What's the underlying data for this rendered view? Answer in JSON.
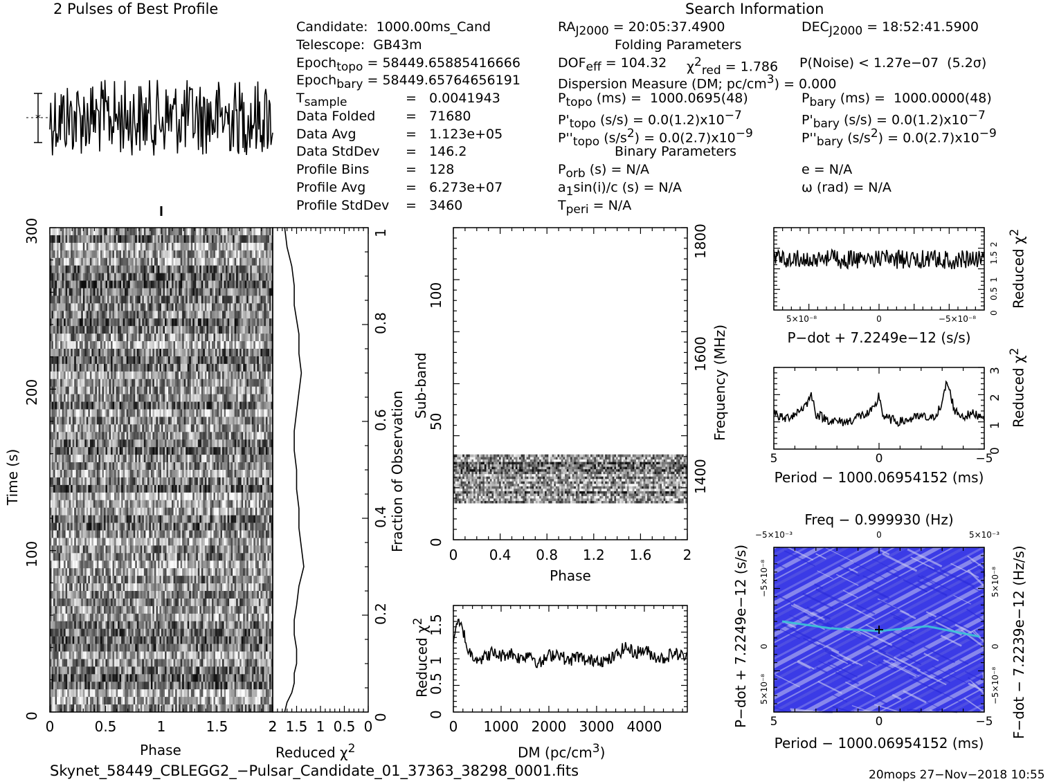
{
  "header": {
    "profile_title": "2 Pulses of Best Profile",
    "search_title": "Search Information"
  },
  "candidate_info": {
    "candidate": "Candidate:  1000.00ms_Cand",
    "telescope": "Telescope:  GB43m",
    "epoch_topo": "Epoch",
    "epoch_topo_sub": "topo",
    "epoch_topo_val": " = 58449.65885416666",
    "epoch_bary": "Epoch",
    "epoch_bary_sub": "bary",
    "epoch_bary_val": " = 58449.65764656191",
    "tsample": "T",
    "tsample_sub": "sample",
    "tsample_val": "=   0.0041943",
    "data_folded_label": "Data Folded",
    "data_folded_val": "=   71680",
    "data_avg_label": "Data Avg",
    "data_avg_val": "=   1.123e+05",
    "data_stddev_label": "Data StdDev",
    "data_stddev_val": "=   146.2",
    "profile_bins_label": "Profile Bins",
    "profile_bins_val": "=   128",
    "profile_avg_label": "Profile Avg",
    "profile_avg_val": "=   6.273e+07",
    "profile_stddev_label": "Profile StdDev",
    "profile_stddev_val": "=   3460"
  },
  "search_info": {
    "ra": "RA",
    "ra_sub": "J2000",
    "ra_val": " = 20:05:37.4900",
    "dec": "DEC",
    "dec_sub": "J2000",
    "dec_val": " = 18:52:41.5900",
    "folding_title": "Folding Parameters",
    "dof": "DOF",
    "dof_sub": "eff",
    "dof_val": " = 104.32",
    "chi2red": "χ",
    "chi2red_sup": "2",
    "chi2red_sub": "red",
    "chi2red_val": " = 1.786",
    "pnoise": "P(Noise) < 1.27e−07  (5.2σ)",
    "dm_line": "Dispersion Measure (DM; pc/cm",
    "dm_line_sup": "3",
    "dm_line_end": ") = 0.000",
    "ptopo": "P",
    "ptopo_sub": "topo",
    "ptopo_val": " (ms) =  1000.0695(48)",
    "pbary": "P",
    "pbary_sub": "bary",
    "pbary_val": " (ms) =  1000.0000(48)",
    "pdtopo": "P'",
    "pdtopo_sub": "topo",
    "pdtopo_val": " (s/s) = 0.0(1.2)x10",
    "pdtopo_exp": "−7",
    "pdbary": "P'",
    "pdbary_sub": "bary",
    "pdbary_val": " (s/s) = 0.0(1.2)x10",
    "pdbary_exp": "−7",
    "pddtopo": "P''",
    "pddtopo_sub": "topo",
    "pddtopo_val": " (s/s",
    "pddtopo_sup": "2",
    "pddtopo_val2": ") = 0.0(2.7)x10",
    "pddtopo_exp": "−9",
    "pddbary": "P''",
    "pddbary_sub": "bary",
    "pddbary_val": " (s/s",
    "pddbary_sup": "2",
    "pddbary_val2": ") = 0.0(2.7)x10",
    "pddbary_exp": "−9",
    "binary_title": "Binary Parameters",
    "porb": "P",
    "porb_sub": "orb",
    "porb_val": " (s) = N/A",
    "ecc": "e = N/A",
    "a1": "a",
    "a1_sub": "1",
    "a1_val": "sin(i)/c (s) = N/A",
    "omega": "ω (rad) = N/A",
    "tperi": "T",
    "tperi_sub": "peri",
    "tperi_val": " = N/A"
  },
  "footer": {
    "filename": "Skynet_58449_CBLEGG2_−Pulsar_Candidate_01_37363_38298_0001.fits",
    "stamp": "20mops 27−Nov−2018 10:55"
  },
  "colors": {
    "ink": "#000000",
    "ppdot_bg": "#3b3be6",
    "ppdot_light": "#b7b7ee",
    "ppdot_peak": "#3cc7d6"
  },
  "chart_data": [
    {
      "id": "pulse-profile",
      "type": "line",
      "title": "2 Pulses of Best Profile",
      "x": "phase 0 to 2, 256 bins",
      "values": [],
      "note_values": "noise-like profile, no strong pulse"
    },
    {
      "id": "time-phase",
      "type": "heatmap",
      "xlabel": "Phase",
      "ylabel": "Time (s)",
      "xlim": [
        0,
        2
      ],
      "ylim": [
        0,
        300
      ],
      "xticks": [
        "0",
        "0.5",
        "1",
        "1.5",
        "2"
      ],
      "yticks": [
        "0",
        "100",
        "200",
        "300"
      ]
    },
    {
      "id": "time-chi2",
      "type": "line",
      "xlabel": "Reduced χ",
      "xlabel_sup": "2",
      "ylabel": "Fraction of Observation",
      "xticks": [
        "2",
        "1.5",
        "1",
        "0.5",
        "0"
      ],
      "yticks": [
        "0",
        "0.2",
        "0.4",
        "0.6",
        "0.8",
        "1"
      ],
      "xlim": [
        2,
        0
      ],
      "ylim": [
        0,
        1
      ],
      "x": [
        1.75,
        1.7,
        1.6,
        1.55,
        1.55,
        1.45,
        1.45,
        1.4,
        1.45,
        1.5,
        1.55,
        1.55,
        1.5,
        1.5,
        1.45,
        1.45,
        1.4,
        1.35,
        1.45,
        1.5,
        1.55,
        1.55,
        1.5,
        1.5,
        1.55,
        1.55,
        1.6,
        1.7,
        1.75
      ],
      "y": [
        1.0,
        0.96,
        0.92,
        0.88,
        0.84,
        0.78,
        0.74,
        0.7,
        0.66,
        0.62,
        0.58,
        0.54,
        0.5,
        0.46,
        0.42,
        0.38,
        0.34,
        0.3,
        0.26,
        0.22,
        0.19,
        0.16,
        0.13,
        0.1,
        0.08,
        0.06,
        0.04,
        0.02,
        0.0
      ]
    },
    {
      "id": "subband-phase",
      "type": "heatmap",
      "xlabel": "Phase",
      "ylabel": "Sub-band",
      "ylabel_right": "Frequency (MHz)",
      "xlim": [
        0,
        2
      ],
      "ylim": [
        0,
        128
      ],
      "xticks": [
        "0",
        "0.4",
        "0.8",
        "1.2",
        "1.6",
        "2"
      ],
      "yticks": [
        "0",
        "50",
        "100"
      ],
      "yticks_right": [
        "1400",
        "1600",
        "1800"
      ],
      "filled_subbands": [
        15,
        35
      ]
    },
    {
      "id": "dm-chi2",
      "type": "line",
      "xlabel": "DM (pc/cm",
      "xlabel_sup": "3",
      "xlabel_end": ")",
      "ylabel": "Reduced χ",
      "ylabel_sup": "2",
      "xlim": [
        0,
        4900
      ],
      "ylim": [
        0,
        1.8
      ],
      "xticks": [
        "0",
        "1000",
        "2000",
        "3000",
        "4000"
      ],
      "yticks": [
        "0",
        "0.5",
        "1",
        "1.5"
      ],
      "x": [
        0,
        100,
        200,
        300,
        400,
        600,
        800,
        1000,
        1200,
        1400,
        1600,
        1800,
        2000,
        2200,
        2400,
        2600,
        2800,
        3000,
        3200,
        3400,
        3600,
        3800,
        4000,
        4200,
        4400,
        4600,
        4800,
        4900
      ],
      "y": [
        1.25,
        1.5,
        1.4,
        1.05,
        0.95,
        0.9,
        1.0,
        0.95,
        1.0,
        0.9,
        1.0,
        0.8,
        0.95,
        1.0,
        0.85,
        0.95,
        0.85,
        0.9,
        0.85,
        0.95,
        1.1,
        1.0,
        1.05,
        0.95,
        0.9,
        1.0,
        0.95,
        0.9
      ]
    },
    {
      "id": "pdot-chi2",
      "type": "line",
      "xlabel": "P−dot + 7.2249e−12 (s/s)",
      "ylabel": "Reduced χ",
      "ylabel_sup": "2",
      "xticks": [
        "5×10⁻⁸",
        "0",
        "−5×10⁻⁸"
      ],
      "yticks": [
        "0",
        "0.5",
        "1",
        "1.5",
        "2"
      ],
      "xlim": [
        6.5e-08,
        -6.5e-08
      ],
      "ylim": [
        0,
        2.3
      ]
    },
    {
      "id": "period-chi2",
      "type": "line",
      "xlabel": "Period − 1000.06954152 (ms)",
      "ylabel": "Reduced χ",
      "ylabel_sup": "2",
      "xticks": [
        "5",
        "0",
        "−5"
      ],
      "yticks": [
        "0",
        "1",
        "2",
        "3"
      ],
      "xlim": [
        5,
        -5
      ],
      "ylim": [
        0,
        3
      ],
      "x": [
        5,
        4.5,
        4,
        3.5,
        3.2,
        3,
        2.5,
        2,
        1.5,
        1,
        0.5,
        0.2,
        0,
        -0.2,
        -0.5,
        -1,
        -1.5,
        -2,
        -2.5,
        -3,
        -3.2,
        -3.4,
        -3.6,
        -4,
        -4.5,
        -5
      ],
      "y": [
        1.3,
        1.1,
        1.3,
        1.6,
        2.0,
        1.3,
        1.1,
        1.0,
        1.0,
        1.2,
        1.3,
        1.5,
        2.0,
        1.2,
        1.1,
        1.0,
        1.1,
        1.2,
        1.1,
        1.6,
        2.5,
        2.0,
        1.4,
        1.2,
        1.3,
        1.2
      ]
    },
    {
      "id": "ppdot-plane",
      "type": "heatmap",
      "title": "Freq − 0.999930 (Hz)",
      "xlabel": "Period − 1000.06954152 (ms)",
      "ylabel": "P−dot + 7.2249e−12 (s/s)",
      "ylabel_right": "F−dot − 7.2239e−12 (Hz/s)",
      "xticks": [
        "5",
        "0",
        "−5"
      ],
      "xticks_top": [
        "−5×10⁻³",
        "0",
        "5×10⁻³"
      ],
      "yticks": [
        "−5×10⁻⁸",
        "0",
        "5×10⁻⁸"
      ],
      "yticks_right": [
        "5×10⁻⁸",
        "0",
        "−5×10⁻⁸"
      ]
    }
  ]
}
